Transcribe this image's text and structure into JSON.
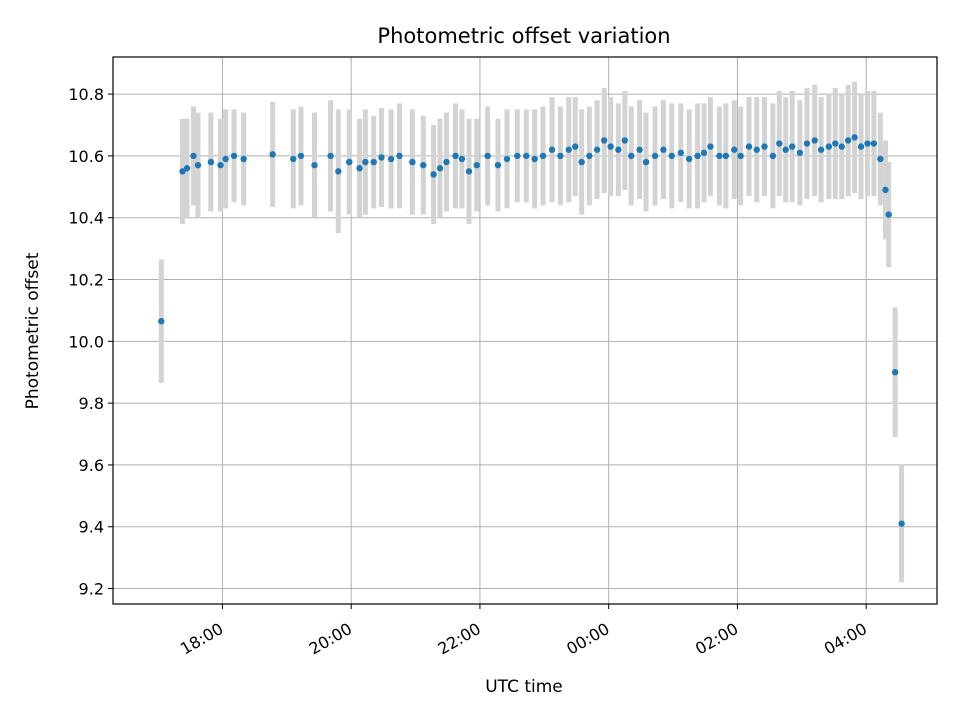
{
  "chart_data": {
    "type": "scatter",
    "title": "Photometric offset variation",
    "xlabel": "UTC time",
    "ylabel": "Photometric offset",
    "x_tick_labels": [
      "18:00",
      "20:00",
      "22:00",
      "00:00",
      "02:00",
      "04:00"
    ],
    "x_tick_values": [
      18,
      20,
      22,
      24,
      26,
      28
    ],
    "y_tick_labels": [
      "9.2",
      "9.4",
      "9.6",
      "9.8",
      "10.0",
      "10.2",
      "10.4",
      "10.6",
      "10.8"
    ],
    "y_tick_values": [
      9.2,
      9.4,
      9.6,
      9.8,
      10.0,
      10.2,
      10.4,
      10.6,
      10.8
    ],
    "xlim": [
      16.3,
      29.1
    ],
    "ylim": [
      9.15,
      10.92
    ],
    "x_unit_note": "hours UTC (24 = 00:00 next day)",
    "grid": true,
    "marker_color": "#1f77b4",
    "errorbar_color": "#d3d3d3",
    "series": [
      {
        "x": [
          17.05,
          17.38,
          17.45,
          17.55,
          17.62,
          17.82,
          17.97,
          18.05,
          18.18,
          18.33,
          18.78,
          19.1,
          19.22,
          19.43,
          19.68,
          19.8,
          19.97,
          20.13,
          20.22,
          20.35,
          20.47,
          20.62,
          20.75,
          20.95,
          21.12,
          21.28,
          21.38,
          21.48,
          21.62,
          21.72,
          21.83,
          21.95,
          22.12,
          22.28,
          22.42,
          22.58,
          22.72,
          22.85,
          22.98,
          23.12,
          23.25,
          23.38,
          23.48,
          23.58,
          23.7,
          23.82,
          23.93,
          24.03,
          24.15,
          24.25,
          24.35,
          24.48,
          24.58,
          24.72,
          24.85,
          24.98,
          25.12,
          25.25,
          25.38,
          25.48,
          25.58,
          25.72,
          25.82,
          25.95,
          26.05,
          26.18,
          26.3,
          26.42,
          26.55,
          26.65,
          26.75,
          26.85,
          26.97,
          27.08,
          27.2,
          27.3,
          27.42,
          27.52,
          27.62,
          27.72,
          27.82,
          27.92,
          28.02,
          28.12,
          28.22,
          28.3,
          28.35,
          28.45,
          28.55
        ],
        "y": [
          10.065,
          10.55,
          10.56,
          10.6,
          10.57,
          10.58,
          10.57,
          10.59,
          10.6,
          10.59,
          10.605,
          10.59,
          10.6,
          10.57,
          10.6,
          10.55,
          10.58,
          10.56,
          10.58,
          10.58,
          10.595,
          10.59,
          10.6,
          10.58,
          10.57,
          10.54,
          10.56,
          10.58,
          10.6,
          10.59,
          10.55,
          10.57,
          10.6,
          10.57,
          10.59,
          10.6,
          10.6,
          10.59,
          10.6,
          10.62,
          10.6,
          10.62,
          10.63,
          10.58,
          10.6,
          10.62,
          10.65,
          10.63,
          10.62,
          10.65,
          10.6,
          10.62,
          10.58,
          10.6,
          10.62,
          10.6,
          10.61,
          10.59,
          10.6,
          10.61,
          10.63,
          10.6,
          10.6,
          10.62,
          10.6,
          10.63,
          10.62,
          10.63,
          10.6,
          10.64,
          10.62,
          10.63,
          10.61,
          10.64,
          10.65,
          10.62,
          10.63,
          10.64,
          10.63,
          10.65,
          10.66,
          10.63,
          10.64,
          10.64,
          10.59,
          10.49,
          10.41,
          9.9,
          9.41
        ],
        "yerr": [
          0.2,
          0.17,
          0.16,
          0.16,
          0.17,
          0.16,
          0.15,
          0.16,
          0.15,
          0.15,
          0.17,
          0.16,
          0.16,
          0.17,
          0.18,
          0.2,
          0.17,
          0.16,
          0.17,
          0.15,
          0.16,
          0.16,
          0.17,
          0.17,
          0.16,
          0.16,
          0.16,
          0.16,
          0.17,
          0.16,
          0.17,
          0.15,
          0.16,
          0.15,
          0.16,
          0.15,
          0.15,
          0.16,
          0.16,
          0.17,
          0.16,
          0.17,
          0.16,
          0.17,
          0.16,
          0.16,
          0.17,
          0.16,
          0.15,
          0.16,
          0.16,
          0.16,
          0.16,
          0.16,
          0.16,
          0.17,
          0.16,
          0.16,
          0.17,
          0.16,
          0.16,
          0.16,
          0.17,
          0.16,
          0.16,
          0.16,
          0.17,
          0.16,
          0.17,
          0.17,
          0.17,
          0.18,
          0.17,
          0.18,
          0.18,
          0.17,
          0.17,
          0.18,
          0.17,
          0.18,
          0.18,
          0.17,
          0.17,
          0.17,
          0.15,
          0.16,
          0.17,
          0.21,
          0.19
        ]
      }
    ]
  }
}
